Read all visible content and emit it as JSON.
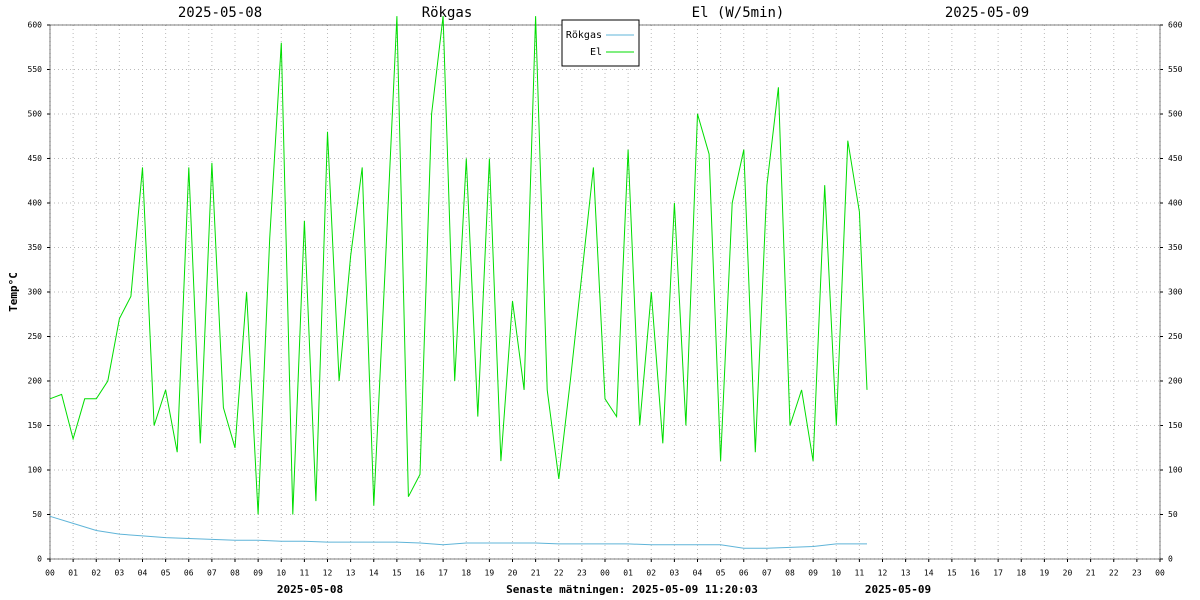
{
  "chart_data": {
    "type": "line",
    "titles": [
      "2025-05-08",
      "Rökgas",
      "El (W/5min)",
      "2025-05-09"
    ],
    "footer": [
      "2025-05-08",
      "Senaste mätningen: 2025-05-09 11:20:03",
      "2025-05-09"
    ],
    "ylabel": "Temp°C",
    "xlim": [
      0,
      48
    ],
    "ylim": [
      0,
      600
    ],
    "yticks": [
      0,
      50,
      100,
      150,
      200,
      250,
      300,
      350,
      400,
      450,
      500,
      550,
      600
    ],
    "xticks": [
      {
        "value": 0,
        "label": "00"
      },
      {
        "value": 1,
        "label": "01"
      },
      {
        "value": 2,
        "label": "02"
      },
      {
        "value": 3,
        "label": "03"
      },
      {
        "value": 4,
        "label": "04"
      },
      {
        "value": 5,
        "label": "05"
      },
      {
        "value": 6,
        "label": "06"
      },
      {
        "value": 7,
        "label": "07"
      },
      {
        "value": 8,
        "label": "08"
      },
      {
        "value": 9,
        "label": "09"
      },
      {
        "value": 10,
        "label": "10"
      },
      {
        "value": 11,
        "label": "11"
      },
      {
        "value": 12,
        "label": "12"
      },
      {
        "value": 13,
        "label": "13"
      },
      {
        "value": 14,
        "label": "14"
      },
      {
        "value": 15,
        "label": "15"
      },
      {
        "value": 16,
        "label": "16"
      },
      {
        "value": 17,
        "label": "17"
      },
      {
        "value": 18,
        "label": "18"
      },
      {
        "value": 19,
        "label": "19"
      },
      {
        "value": 20,
        "label": "20"
      },
      {
        "value": 21,
        "label": "21"
      },
      {
        "value": 22,
        "label": "22"
      },
      {
        "value": 23,
        "label": "23"
      },
      {
        "value": 24,
        "label": "00"
      },
      {
        "value": 25,
        "label": "01"
      },
      {
        "value": 26,
        "label": "02"
      },
      {
        "value": 27,
        "label": "03"
      },
      {
        "value": 28,
        "label": "04"
      },
      {
        "value": 29,
        "label": "05"
      },
      {
        "value": 30,
        "label": "06"
      },
      {
        "value": 31,
        "label": "07"
      },
      {
        "value": 32,
        "label": "08"
      },
      {
        "value": 33,
        "label": "09"
      },
      {
        "value": 34,
        "label": "10"
      },
      {
        "value": 35,
        "label": "11"
      },
      {
        "value": 36,
        "label": "12"
      },
      {
        "value": 37,
        "label": "13"
      },
      {
        "value": 38,
        "label": "14"
      },
      {
        "value": 39,
        "label": "15"
      },
      {
        "value": 40,
        "label": "16"
      },
      {
        "value": 41,
        "label": "17"
      },
      {
        "value": 42,
        "label": "18"
      },
      {
        "value": 43,
        "label": "19"
      },
      {
        "value": 44,
        "label": "20"
      },
      {
        "value": 45,
        "label": "21"
      },
      {
        "value": 46,
        "label": "22"
      },
      {
        "value": 47,
        "label": "23"
      },
      {
        "value": 48,
        "label": "00"
      }
    ],
    "grid": true,
    "legend": "top",
    "series": [
      {
        "name": "Rökgas",
        "color": "#5fb4d8",
        "x": [
          0,
          1,
          2,
          3,
          4,
          5,
          6,
          7,
          8,
          9,
          10,
          11,
          12,
          13,
          14,
          15,
          16,
          17,
          18,
          19,
          20,
          21,
          22,
          23,
          24,
          25,
          26,
          27,
          28,
          29,
          30,
          31,
          32,
          33,
          34,
          35,
          35.33
        ],
        "values": [
          48,
          40,
          32,
          28,
          26,
          24,
          23,
          22,
          21,
          21,
          20,
          20,
          19,
          19,
          19,
          19,
          18,
          16,
          18,
          18,
          18,
          18,
          17,
          17,
          17,
          17,
          16,
          16,
          16,
          16,
          12,
          12,
          13,
          14,
          17,
          17,
          17
        ]
      },
      {
        "name": "El",
        "color": "#00dd00",
        "x": [
          0,
          0.5,
          1,
          1.5,
          2,
          2.5,
          3,
          3.5,
          4,
          4.5,
          5,
          5.5,
          6,
          6.5,
          7,
          7.5,
          8,
          8.5,
          9,
          9.5,
          10,
          10.5,
          11,
          11.5,
          12,
          12.5,
          13,
          13.5,
          14,
          14.5,
          15,
          15.5,
          16,
          16.5,
          17,
          17.5,
          18,
          18.5,
          19,
          19.5,
          20,
          20.5,
          21,
          21.5,
          22,
          22.5,
          23,
          23.5,
          24,
          24.5,
          25,
          25.5,
          26,
          26.5,
          27,
          27.5,
          28,
          28.5,
          29,
          29.5,
          30,
          30.5,
          31,
          31.5,
          32,
          32.5,
          33,
          33.5,
          34,
          34.5,
          35,
          35.33
        ],
        "values": [
          180,
          185,
          135,
          180,
          180,
          200,
          270,
          295,
          440,
          150,
          190,
          120,
          440,
          130,
          445,
          170,
          125,
          300,
          50,
          360,
          580,
          50,
          380,
          65,
          480,
          200,
          340,
          440,
          60,
          330,
          610,
          70,
          95,
          500,
          610,
          200,
          450,
          160,
          450,
          110,
          290,
          190,
          610,
          190,
          90,
          200,
          320,
          440,
          180,
          160,
          460,
          150,
          300,
          130,
          400,
          150,
          500,
          455,
          110,
          400,
          460,
          120,
          420,
          530,
          150,
          190,
          110,
          420,
          150,
          470,
          390,
          190
        ]
      }
    ]
  }
}
